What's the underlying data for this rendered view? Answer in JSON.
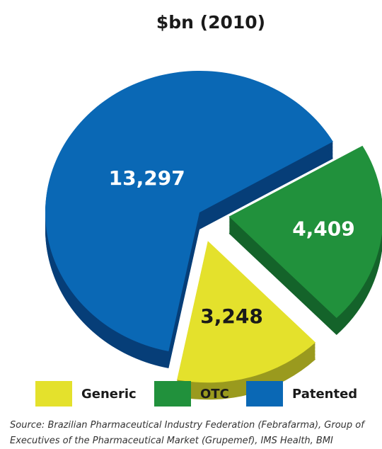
{
  "chart_data": {
    "type": "pie",
    "title": "$bn (2010)",
    "slices": [
      {
        "label": "Generic",
        "value": 3248,
        "display": "3,248",
        "color": "#e4e12c",
        "side_color": "#9a9a1e",
        "label_color": "#1a1a1a"
      },
      {
        "label": "OTC",
        "value": 4409,
        "display": "4,409",
        "color": "#21913c",
        "side_color": "#14632a",
        "label_color": "#ffffff"
      },
      {
        "label": "Patented",
        "value": 13297,
        "display": "13,297",
        "color": "#0a68b5",
        "side_color": "#063e78",
        "label_color": "#ffffff"
      }
    ],
    "legend_position": "bottom",
    "exploded": [
      "Generic",
      "OTC"
    ],
    "style": "3d"
  },
  "legend": [
    {
      "label": "Generic",
      "color": "#e4e12c"
    },
    {
      "label": "OTC",
      "color": "#21913c"
    },
    {
      "label": "Patented",
      "color": "#0a68b5"
    }
  ],
  "source": "Source: Brazilian Pharmaceutical Industry Federation (Febrafarma), Group of Executives of the Pharmaceutical Market (Grupemef), IMS Health, BMI"
}
